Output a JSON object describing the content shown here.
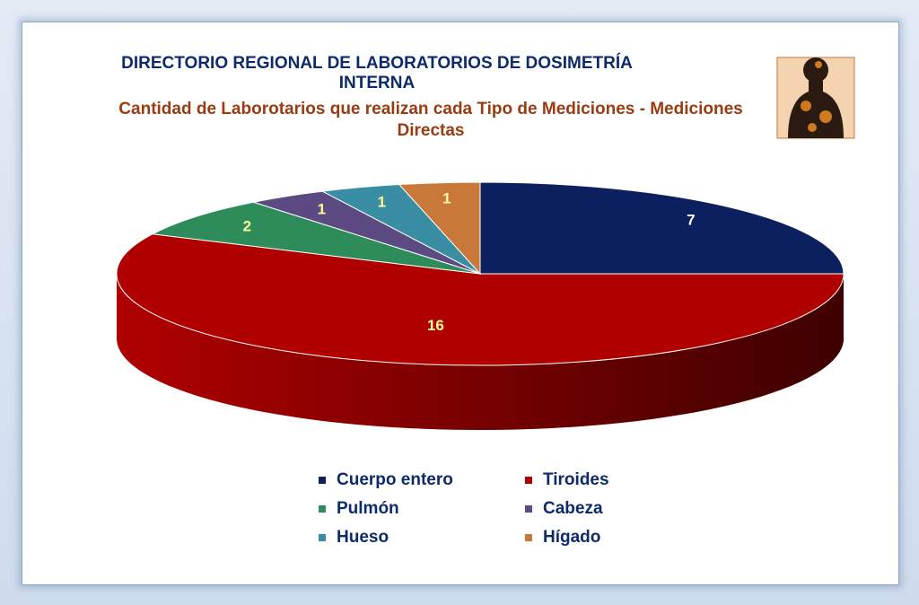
{
  "chart_data": {
    "type": "pie3d",
    "title": "DIRECTORIO REGIONAL DE LABORATORIOS DE DOSIMETRÍA INTERNA",
    "subtitle": "Cantidad de Laborotarios que realizan cada Tipo de Mediciones - Mediciones Directas",
    "categories": [
      "Cuerpo entero",
      "Tiroides",
      "Pulmón",
      "Cabeza",
      "Hueso",
      "Hígado"
    ],
    "values": [
      7,
      16,
      2,
      1,
      1,
      1
    ],
    "colors": [
      "#0c1f5e",
      "#b00000",
      "#2e8b5a",
      "#5c4a82",
      "#3a8ea3",
      "#c8793a"
    ],
    "legend": "bottom"
  }
}
